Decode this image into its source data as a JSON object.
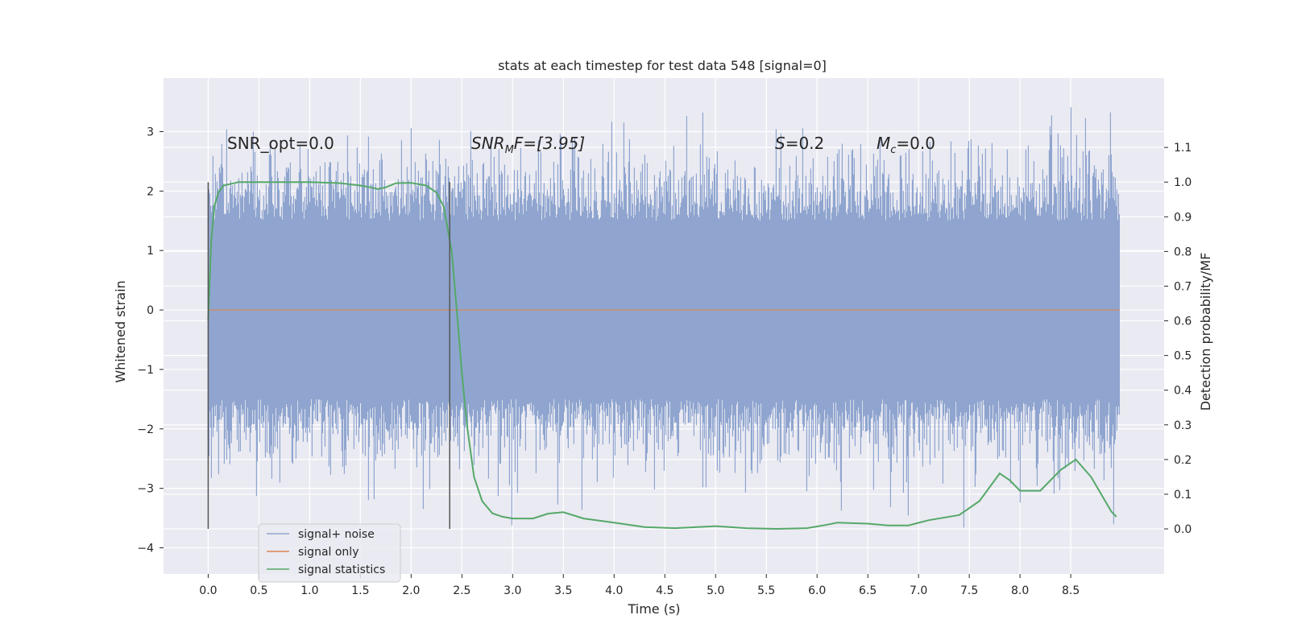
{
  "chart_data": {
    "type": "line",
    "title": "stats at each timestep for test data 548 [signal=0]",
    "xlabel": "Time (s)",
    "ylabel": "Whitened strain",
    "y2label": "Detection probability/MF",
    "xlim": [
      -0.44,
      9.42
    ],
    "ylim": [
      -4.44,
      3.9
    ],
    "y2lim": [
      -0.13,
      1.3
    ],
    "xticks": [
      "0.0",
      "0.5",
      "1.0",
      "1.5",
      "2.0",
      "2.5",
      "3.0",
      "3.5",
      "4.0",
      "4.5",
      "5.0",
      "5.5",
      "6.0",
      "6.5",
      "7.0",
      "7.5",
      "8.0",
      "8.5"
    ],
    "yticks": [
      "−4",
      "−3",
      "−2",
      "−1",
      "0",
      "1",
      "2",
      "3"
    ],
    "y2ticks": [
      "0.0",
      "0.1",
      "0.2",
      "0.3",
      "0.4",
      "0.5",
      "0.6",
      "0.7",
      "0.8",
      "0.9",
      "1.0",
      "1.1"
    ],
    "annotations": {
      "snr_opt": "SNR_opt=0.0",
      "snr_mf_base": "SNR",
      "snr_mf_sub": "M",
      "snr_mf_rest": "F=[3.95]",
      "s_var": "S",
      "s_rest": "=0.2",
      "mc_base": "M",
      "mc_sub": "c",
      "mc_rest": "=0.0"
    },
    "vlines": [
      0.0,
      2.38
    ],
    "legend": {
      "position": "lower-left",
      "entries": [
        "signal+ noise",
        "signal only",
        "signal statistics"
      ]
    },
    "colors": {
      "noise": "#8fa5cf",
      "signal": "#dd8452",
      "stats": "#55a868",
      "vline": "#555555",
      "background": "#eaeaf2",
      "grid": "#ffffff"
    },
    "series": [
      {
        "name": "signal+ noise",
        "x_range": [
          0.0,
          8.98
        ],
        "typical_range": [
          -1.5,
          1.5
        ],
        "extreme_range": [
          -4.0,
          3.55
        ]
      },
      {
        "name": "signal only",
        "x": [
          0.0,
          8.98
        ],
        "y": [
          0.0,
          0.0
        ]
      },
      {
        "name": "signal statistics",
        "x": [
          0.0,
          0.03,
          0.06,
          0.1,
          0.15,
          0.3,
          0.6,
          1.0,
          1.3,
          1.5,
          1.6,
          1.67,
          1.75,
          1.85,
          2.0,
          2.15,
          2.25,
          2.32,
          2.4,
          2.45,
          2.5,
          2.55,
          2.62,
          2.7,
          2.8,
          2.9,
          3.0,
          3.2,
          3.35,
          3.5,
          3.7,
          4.0,
          4.3,
          4.6,
          5.0,
          5.3,
          5.6,
          5.9,
          6.1,
          6.2,
          6.5,
          6.7,
          6.9,
          7.1,
          7.4,
          7.6,
          7.8,
          7.9,
          8.0,
          8.2,
          8.4,
          8.55,
          8.7,
          8.9,
          8.95
        ],
        "y": [
          0.6,
          0.83,
          0.93,
          0.97,
          0.99,
          1.0,
          1.0,
          1.0,
          0.997,
          0.99,
          0.985,
          0.98,
          0.985,
          0.997,
          0.998,
          0.99,
          0.97,
          0.93,
          0.8,
          0.63,
          0.45,
          0.3,
          0.15,
          0.08,
          0.045,
          0.035,
          0.03,
          0.03,
          0.044,
          0.048,
          0.03,
          0.018,
          0.005,
          0.002,
          0.008,
          0.002,
          0.0,
          0.002,
          0.012,
          0.018,
          0.015,
          0.01,
          0.01,
          0.025,
          0.04,
          0.08,
          0.16,
          0.14,
          0.11,
          0.11,
          0.17,
          0.2,
          0.15,
          0.05,
          0.035
        ]
      }
    ]
  }
}
